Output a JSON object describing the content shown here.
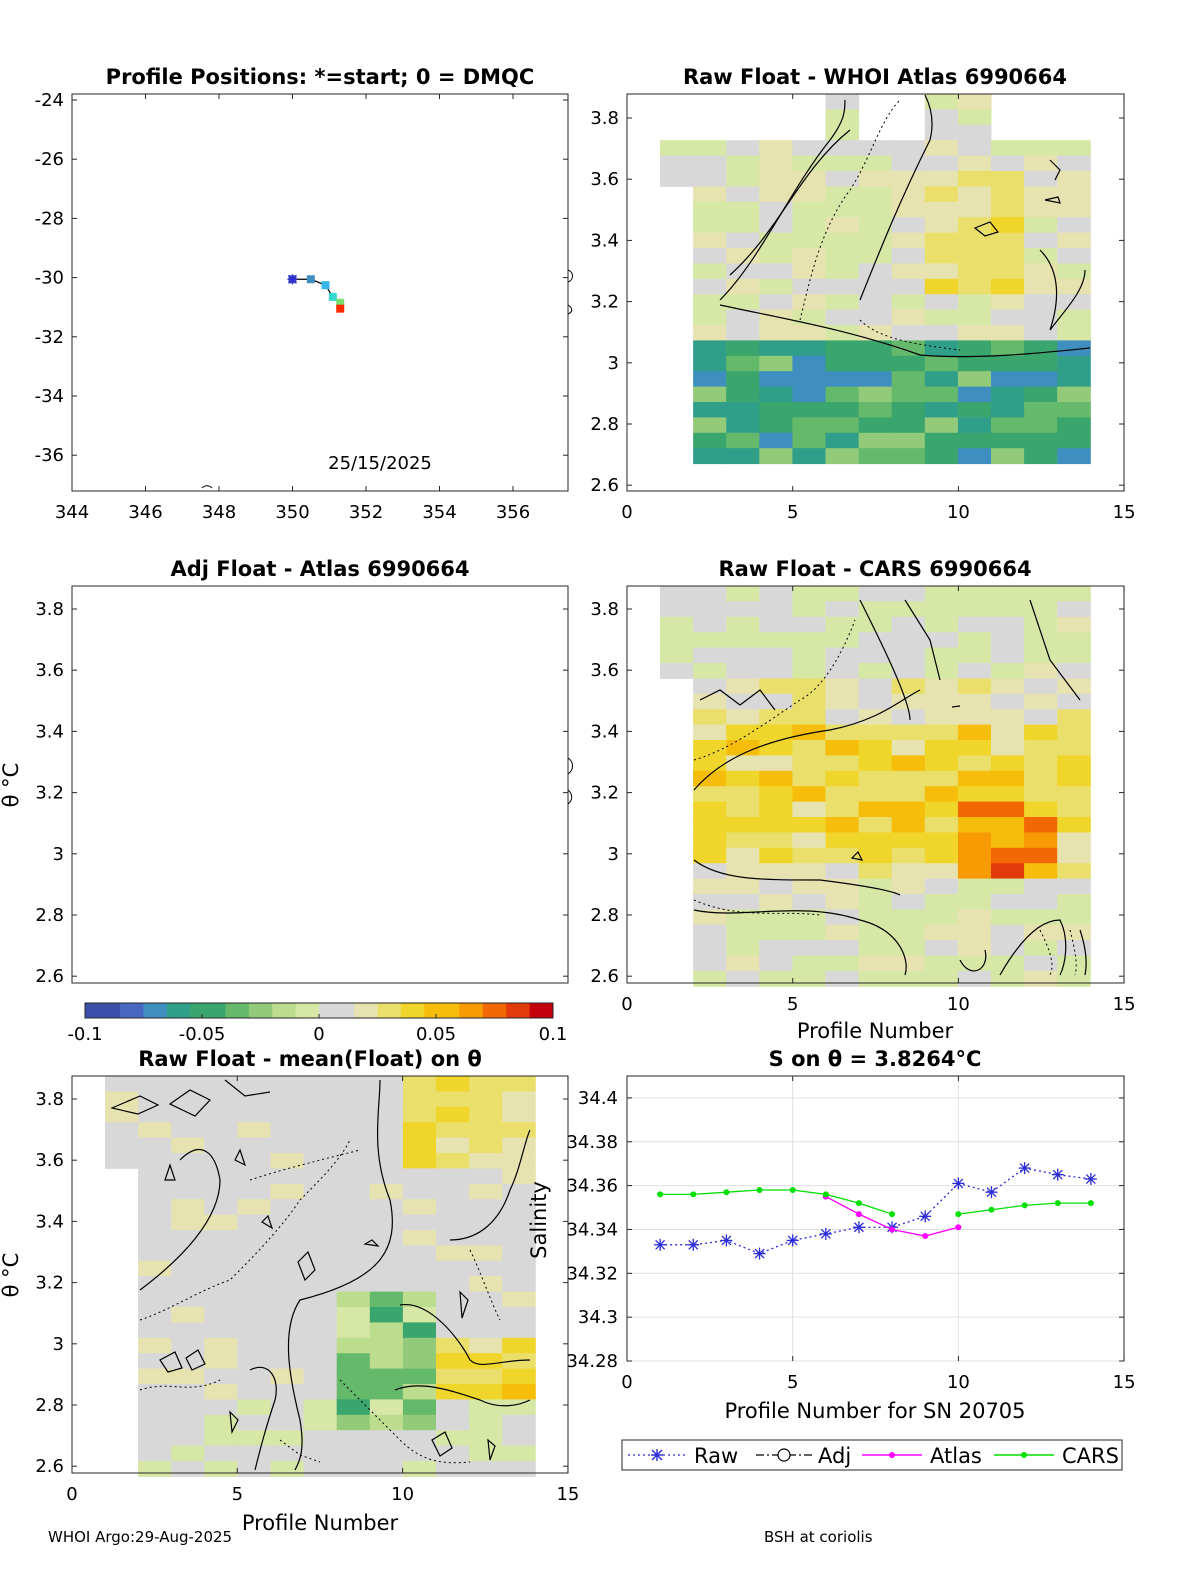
{
  "colors": {
    "raw": "#2b2bd9",
    "adj": "#000000",
    "atlas": "#ff00ff",
    "cars": "#00e000",
    "cmap": [
      "#3b4ea8",
      "#4868c0",
      "#3e8fc0",
      "#2f9f8a",
      "#3aa56c",
      "#64b96b",
      "#92ca7a",
      "#bcdc8e",
      "#d6e7a6",
      "#d8d8d8",
      "#e6e3b0",
      "#eadf6b",
      "#f0d52a",
      "#f6bd0a",
      "#f79a04",
      "#f26804",
      "#e23a0a",
      "#c4000c"
    ]
  },
  "footer": {
    "left": "WHOI Argo:29-Aug-2025",
    "right": "BSH at coriolis"
  },
  "colorbar": {
    "ticks": [
      "-0.1",
      "-0.05",
      "0",
      "0.05",
      "0.1"
    ],
    "range": [
      -0.1,
      0.1
    ]
  },
  "panels": {
    "positions": {
      "title": "Profile Positions: *=start; 0 = DMQC",
      "date": "25/15/2025",
      "xticks": [
        "344",
        "346",
        "348",
        "350",
        "352",
        "354",
        "356"
      ],
      "yticks": [
        "-24",
        "-26",
        "-28",
        "-30",
        "-32",
        "-34",
        "-36"
      ]
    },
    "whoi": {
      "title": "Raw Float - WHOI Atlas  6990664"
    },
    "adj": {
      "title": "Adj Float - Atlas  6990664",
      "ylabel": "θ °C"
    },
    "cars": {
      "title": "Raw Float - CARS  6990664",
      "xlabel": "Profile Number"
    },
    "meanfloat": {
      "title": "Raw Float - mean(Float) on θ",
      "ylabel": "θ °C",
      "xlabel": "Profile Number"
    },
    "salinity": {
      "title": "S on θ = 3.8264°C",
      "xlabel": "Profile Number for SN 20705",
      "ylabel": "Salinity"
    }
  },
  "theta_ticks": [
    "3.8",
    "3.6",
    "3.4",
    "3.2",
    "3",
    "2.8",
    "2.6"
  ],
  "profile_ticks": [
    "0",
    "5",
    "10",
    "15"
  ],
  "sal_ticks": [
    "34.4",
    "34.38",
    "34.36",
    "34.34",
    "34.32",
    "34.3",
    "34.28"
  ],
  "legend": {
    "raw": "Raw",
    "adj": "Adj",
    "atlas": "Atlas",
    "cars": "CARS"
  },
  "chart_data": [
    {
      "type": "scatter",
      "title": "Profile Positions: *=start; 0 = DMQC",
      "xlim": [
        344,
        357.5
      ],
      "ylim": [
        -37.2,
        -23.7
      ],
      "track": [
        [
          350.0,
          -30.0
        ],
        [
          350.5,
          -30.0
        ],
        [
          350.9,
          -30.2
        ],
        [
          351.1,
          -30.6
        ],
        [
          351.3,
          -30.8
        ],
        [
          351.3,
          -31.0
        ]
      ],
      "marker_colors": [
        "#3b4ea8",
        "#3e8fc0",
        "#35b8e8",
        "#38d8d0",
        "#78e070",
        "#ff2a00"
      ]
    },
    {
      "type": "heatmap",
      "title": "S on θ = 3.8264°C",
      "xlim": [
        0,
        15
      ],
      "ylim": [
        34.28,
        34.41
      ],
      "series": [
        {
          "name": "Raw",
          "x": [
            1,
            2,
            3,
            4,
            5,
            6,
            7,
            8,
            9,
            10,
            11,
            12,
            13,
            14
          ],
          "y": [
            34.333,
            34.333,
            34.335,
            34.329,
            34.335,
            34.338,
            34.341,
            34.341,
            34.346,
            34.361,
            34.357,
            34.368,
            34.365,
            34.363
          ]
        },
        {
          "name": "Atlas",
          "x": [
            6,
            7,
            8,
            9,
            10
          ],
          "y": [
            34.355,
            34.347,
            34.34,
            34.337,
            34.341
          ]
        },
        {
          "name": "CARS",
          "x": [
            1,
            2,
            3,
            4,
            5,
            6,
            7,
            8,
            10,
            11,
            12,
            13,
            14
          ],
          "y": [
            34.356,
            34.356,
            34.357,
            34.358,
            34.358,
            34.356,
            34.352,
            34.347,
            34.347,
            34.349,
            34.351,
            34.352,
            34.352
          ]
        }
      ]
    }
  ]
}
